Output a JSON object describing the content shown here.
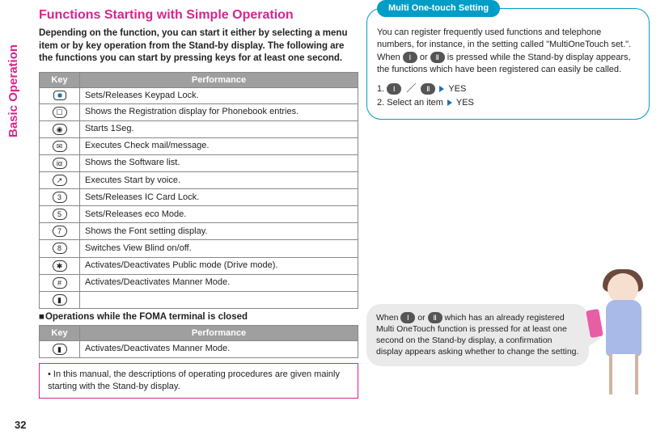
{
  "side_tab": "Basic Operation",
  "page_number": "32",
  "left": {
    "title": "Functions Starting with Simple Operation",
    "intro": "Depending on the function, you can start it either by selecting a menu item or by key operation from the Stand-by display. The following are the functions you can start by pressing keys for at least one second.",
    "table1": {
      "headers": [
        "Key",
        "Performance"
      ],
      "rows": [
        {
          "key_glyph": "■",
          "key_class": "kbox-dot",
          "perf": "Sets/Releases Keypad Lock."
        },
        {
          "key_glyph": "☐",
          "key_class": "k",
          "perf": "Shows the Registration display for Phonebook entries."
        },
        {
          "key_glyph": "◉",
          "key_class": "k",
          "perf": "Starts 1Seg."
        },
        {
          "key_glyph": "✉",
          "key_class": "k",
          "perf": "Executes Check mail/message."
        },
        {
          "key_glyph": "iα",
          "key_class": "k",
          "perf": "Shows the Software list."
        },
        {
          "key_glyph": "↗",
          "key_class": "k",
          "perf": "Executes Start by voice."
        },
        {
          "key_glyph": "3",
          "key_class": "k",
          "perf": "Sets/Releases IC Card Lock."
        },
        {
          "key_glyph": "5",
          "key_class": "k",
          "perf": "Sets/Releases eco Mode."
        },
        {
          "key_glyph": "7",
          "key_class": "k",
          "perf": "Shows the Font setting display."
        },
        {
          "key_glyph": "8",
          "key_class": "k",
          "perf": "Switches View Blind on/off."
        },
        {
          "key_glyph": "✱",
          "key_class": "k",
          "perf": "Activates/Deactivates Public mode (Drive mode)."
        },
        {
          "key_glyph": "#",
          "key_class": "k",
          "perf": "Activates/Deactivates Manner Mode."
        },
        {
          "key_glyph": "▮",
          "key_class": "k",
          "perf": ""
        }
      ]
    },
    "sub_heading": "Operations while the FOMA terminal is closed",
    "table2": {
      "headers": [
        "Key",
        "Performance"
      ],
      "rows": [
        {
          "key_glyph": "▮",
          "key_class": "k",
          "perf": "Activates/Deactivates Manner Mode."
        }
      ]
    },
    "note": "In this manual, the descriptions of operating procedures are given mainly starting with the Stand-by display."
  },
  "right": {
    "callout_title": "Multi One-touch Setting",
    "callout_body_pre": "You can register frequently used functions and telephone numbers, for instance, in the setting called \"MultiOneTouch set.\". When ",
    "callout_body_mid": " or ",
    "callout_body_post": " is pressed while the Stand-by display appears, the functions which have been registered can easily be called.",
    "step1_num": "1.",
    "step1_yes": "YES",
    "step2": "2. Select an item",
    "step2_yes": "YES",
    "speech_pre": "When ",
    "speech_mid": " or ",
    "speech_post": " which has an already registered Multi OneTouch function is pressed for at least one second on the Stand-by display, a confirmation display appears asking whether to change the setting."
  },
  "colors": {
    "accent_pink": "#d6258f",
    "accent_cyan": "#009dc6",
    "header_gray": "#9f9fa0",
    "triangle_blue": "#1f6fb5"
  }
}
